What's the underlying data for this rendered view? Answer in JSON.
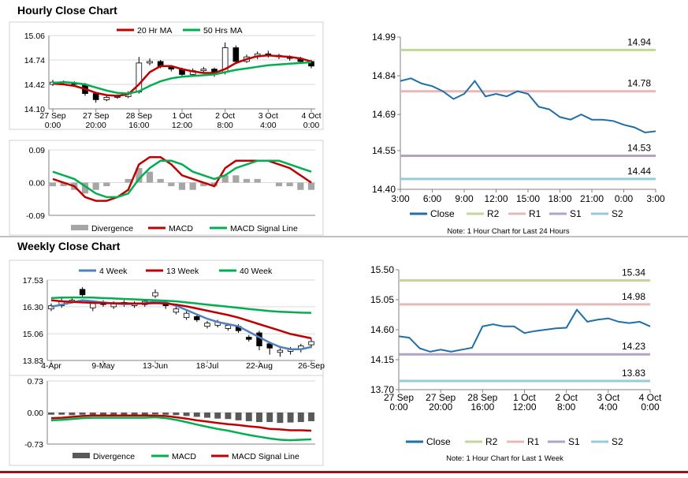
{
  "headings": [
    "Hourly Close Chart",
    "Weekly Close Chart"
  ],
  "chart_data": [
    {
      "type": "candlestick",
      "categories": [
        "27 Sep\n0:00",
        null,
        null,
        null,
        "27 Sep\n20:00",
        null,
        null,
        null,
        "28 Sep\n16:00",
        null,
        null,
        null,
        "1 Oct\n12:00",
        null,
        null,
        null,
        "2 Oct\n8:00",
        null,
        null,
        null,
        "3 Oct\n4:00",
        null,
        null,
        null,
        "4 Oct\n0:00"
      ],
      "ohlc": {
        "open": [
          14.42,
          14.45,
          14.44,
          14.42,
          14.3,
          14.22,
          14.25,
          14.26,
          14.32,
          14.7,
          14.72,
          14.65,
          14.62,
          14.55,
          14.6,
          14.62,
          14.58,
          14.9,
          14.72,
          14.78,
          14.82,
          14.8,
          14.78,
          14.76,
          14.72
        ],
        "high": [
          14.48,
          14.47,
          14.46,
          14.44,
          14.32,
          14.28,
          14.29,
          14.33,
          14.78,
          14.76,
          14.74,
          14.67,
          14.64,
          14.63,
          14.65,
          14.64,
          14.97,
          14.93,
          14.81,
          14.85,
          14.86,
          14.82,
          14.8,
          14.78,
          14.74
        ],
        "low": [
          14.4,
          14.42,
          14.4,
          14.27,
          14.18,
          14.2,
          14.23,
          14.24,
          14.3,
          14.67,
          14.63,
          14.59,
          14.52,
          14.52,
          14.57,
          14.52,
          14.55,
          14.7,
          14.7,
          14.75,
          14.77,
          14.75,
          14.73,
          14.7,
          14.63
        ],
        "close": [
          14.45,
          14.44,
          14.42,
          14.3,
          14.22,
          14.25,
          14.26,
          14.3,
          14.7,
          14.72,
          14.65,
          14.62,
          14.55,
          14.6,
          14.62,
          14.55,
          14.9,
          14.72,
          14.78,
          14.82,
          14.8,
          14.78,
          14.76,
          14.72,
          14.66
        ]
      },
      "series": [
        {
          "name": "20 Hr MA",
          "color": "#c00000",
          "values": [
            14.43,
            14.42,
            14.4,
            14.36,
            14.31,
            14.28,
            14.27,
            14.29,
            14.42,
            14.58,
            14.66,
            14.66,
            14.62,
            14.59,
            14.57,
            14.57,
            14.62,
            14.7,
            14.75,
            14.79,
            14.8,
            14.79,
            14.78,
            14.76,
            14.72
          ]
        },
        {
          "name": "50 Hrs MA",
          "color": "#00b050",
          "values": [
            14.44,
            14.45,
            14.44,
            14.42,
            14.38,
            14.34,
            14.31,
            14.3,
            14.33,
            14.4,
            14.46,
            14.5,
            14.52,
            14.53,
            14.54,
            14.55,
            14.58,
            14.61,
            14.63,
            14.65,
            14.67,
            14.68,
            14.69,
            14.7,
            14.71
          ]
        }
      ],
      "ylim": [
        14.1,
        15.06
      ],
      "yticks": [
        {
          "value": 14.1,
          "label": "14.10"
        },
        14.42,
        14.74,
        15.06
      ],
      "grid": true
    },
    {
      "type": "combo",
      "series": [
        {
          "name": "Divergence",
          "type": "bar",
          "color": "#a6a6a6",
          "values": [
            -0.01,
            -0.01,
            -0.02,
            -0.03,
            -0.02,
            -0.01,
            0,
            0.01,
            0.04,
            0.03,
            0.01,
            -0.01,
            -0.02,
            -0.02,
            -0.01,
            -0.01,
            0.02,
            0.02,
            0.01,
            0.01,
            0,
            -0.01,
            -0.01,
            -0.02,
            -0.02
          ]
        },
        {
          "name": "MACD",
          "type": "line",
          "color": "#c00000",
          "values": [
            0.01,
            0,
            -0.01,
            -0.04,
            -0.05,
            -0.05,
            -0.04,
            -0.02,
            0.05,
            0.07,
            0.07,
            0.05,
            0.02,
            0.01,
            0,
            -0.01,
            0.04,
            0.06,
            0.06,
            0.06,
            0.06,
            0.05,
            0.04,
            0.02,
            0
          ]
        },
        {
          "name": "MACD Signal Line",
          "type": "line",
          "color": "#00b050",
          "values": [
            0.03,
            0.02,
            0.01,
            -0.01,
            -0.03,
            -0.04,
            -0.04,
            -0.03,
            0.01,
            0.04,
            0.06,
            0.06,
            0.05,
            0.03,
            0.02,
            0.01,
            0.02,
            0.04,
            0.05,
            0.06,
            0.06,
            0.06,
            0.05,
            0.04,
            0.03
          ]
        }
      ],
      "ylim": [
        -0.09,
        0.09
      ],
      "yticks": [
        -0.09,
        {
          "value": 0,
          "label": "0.00"
        },
        0.09
      ],
      "grid": true
    },
    {
      "type": "line",
      "categories": [
        "3:00",
        null,
        null,
        "6:00",
        null,
        null,
        "9:00",
        null,
        null,
        "12:00",
        null,
        null,
        "15:00",
        null,
        null,
        "18:00",
        null,
        null,
        "21:00",
        null,
        null,
        "0:00",
        null,
        null,
        "3:00"
      ],
      "series": [
        {
          "name": "Close",
          "color": "#1f6fa8",
          "values": [
            14.82,
            14.83,
            14.81,
            14.8,
            14.78,
            14.75,
            14.77,
            14.82,
            14.76,
            14.77,
            14.76,
            14.78,
            14.77,
            14.72,
            14.71,
            14.68,
            14.67,
            14.69,
            14.67,
            14.67,
            14.665,
            14.65,
            14.64,
            14.62,
            14.625
          ]
        }
      ],
      "reference_lines": [
        {
          "name": "R2",
          "value": 14.94,
          "color": "#c3d69b"
        },
        {
          "name": "R1",
          "value": 14.78,
          "color": "#e6b9b8"
        },
        {
          "name": "S1",
          "value": 14.53,
          "color": "#b3a2c7"
        },
        {
          "name": "S2",
          "value": 14.44,
          "color": "#93cddd"
        }
      ],
      "ylim": [
        14.4,
        14.99
      ],
      "yticks": [
        {
          "value": 14.4,
          "label": "14.40"
        },
        14.55,
        14.69,
        14.84,
        14.99
      ],
      "grid": false,
      "note": "Note: 1 Hour Chart for Last 24 Hours"
    },
    {
      "type": "candlestick",
      "categories": [
        "4-Apr",
        null,
        null,
        null,
        null,
        "9-May",
        null,
        null,
        null,
        null,
        "13-Jun",
        null,
        null,
        null,
        null,
        "18-Jul",
        null,
        null,
        null,
        null,
        "22-Aug",
        null,
        null,
        null,
        null,
        "26-Sep"
      ],
      "ohlc": {
        "open": [
          16.2,
          16.35,
          16.55,
          17.1,
          16.25,
          16.5,
          16.3,
          16.5,
          16.35,
          16.4,
          16.8,
          16.5,
          16.05,
          15.8,
          15.85,
          15.4,
          15.45,
          15.3,
          15.4,
          14.9,
          15.1,
          14.6,
          14.2,
          14.25,
          14.35,
          14.55
        ],
        "high": [
          16.45,
          16.7,
          16.75,
          17.2,
          16.6,
          16.6,
          16.55,
          16.6,
          16.55,
          16.65,
          17.1,
          16.6,
          16.3,
          16.1,
          15.95,
          15.65,
          15.7,
          15.55,
          15.5,
          15.0,
          15.2,
          14.7,
          14.4,
          14.45,
          14.6,
          14.85
        ],
        "low": [
          16.1,
          16.25,
          16.45,
          16.7,
          16.1,
          16.3,
          16.2,
          16.3,
          16.25,
          16.3,
          16.7,
          16.2,
          15.95,
          15.7,
          15.6,
          15.3,
          15.35,
          15.2,
          15.1,
          14.7,
          14.3,
          14.1,
          14.0,
          14.1,
          14.2,
          14.4
        ],
        "close": [
          16.35,
          16.55,
          16.6,
          16.85,
          16.45,
          16.4,
          16.45,
          16.4,
          16.45,
          16.55,
          16.95,
          16.35,
          16.2,
          16.0,
          15.7,
          15.55,
          15.6,
          15.45,
          15.2,
          14.8,
          14.5,
          14.4,
          14.3,
          14.35,
          14.5,
          14.7
        ]
      },
      "series": [
        {
          "name": "4 Week",
          "color": "#4f81bd",
          "values": [
            16.3,
            16.4,
            16.5,
            16.6,
            16.55,
            16.5,
            16.45,
            16.42,
            16.43,
            16.46,
            16.55,
            16.5,
            16.35,
            16.15,
            15.95,
            15.75,
            15.6,
            15.5,
            15.4,
            15.15,
            14.9,
            14.65,
            14.45,
            14.35,
            14.35,
            14.45
          ]
        },
        {
          "name": "13 Week",
          "color": "#c00000",
          "values": [
            16.6,
            16.55,
            16.52,
            16.5,
            16.48,
            16.47,
            16.46,
            16.46,
            16.45,
            16.45,
            16.47,
            16.45,
            16.4,
            16.32,
            16.22,
            16.12,
            16.02,
            15.92,
            15.8,
            15.65,
            15.5,
            15.35,
            15.2,
            15.05,
            14.95,
            14.85
          ]
        },
        {
          "name": "40 Week",
          "color": "#00b050",
          "values": [
            16.7,
            16.72,
            16.73,
            16.73,
            16.72,
            16.7,
            16.68,
            16.66,
            16.64,
            16.62,
            16.6,
            16.58,
            16.55,
            16.5,
            16.45,
            16.4,
            16.35,
            16.3,
            16.25,
            16.2,
            16.15,
            16.1,
            16.07,
            16.05,
            16.03,
            16.02
          ]
        }
      ],
      "ylim": [
        13.83,
        17.53
      ],
      "yticks": [
        13.83,
        15.06,
        {
          "value": 16.3,
          "label": "16.30"
        },
        17.53
      ],
      "grid": true
    },
    {
      "type": "combo",
      "series": [
        {
          "name": "Divergence",
          "type": "bar",
          "color": "#595959",
          "values": [
            -0.05,
            -0.05,
            -0.06,
            -0.05,
            -0.05,
            -0.05,
            -0.05,
            -0.05,
            -0.05,
            -0.05,
            -0.04,
            -0.05,
            -0.06,
            -0.08,
            -0.1,
            -0.12,
            -0.14,
            -0.15,
            -0.18,
            -0.2,
            -0.22,
            -0.22,
            -0.24,
            -0.23,
            -0.22,
            -0.2
          ]
        },
        {
          "name": "MACD",
          "type": "line",
          "color": "#00b050",
          "values": [
            -0.18,
            -0.17,
            -0.15,
            -0.13,
            -0.12,
            -0.12,
            -0.12,
            -0.12,
            -0.12,
            -0.12,
            -0.11,
            -0.13,
            -0.17,
            -0.22,
            -0.28,
            -0.33,
            -0.38,
            -0.42,
            -0.47,
            -0.52,
            -0.56,
            -0.6,
            -0.63,
            -0.64,
            -0.63,
            -0.62
          ]
        },
        {
          "name": "MACD Signal Line",
          "type": "line",
          "color": "#c00000",
          "values": [
            -0.13,
            -0.12,
            -0.1,
            -0.08,
            -0.07,
            -0.07,
            -0.07,
            -0.07,
            -0.07,
            -0.07,
            -0.07,
            -0.08,
            -0.11,
            -0.14,
            -0.18,
            -0.21,
            -0.24,
            -0.27,
            -0.29,
            -0.32,
            -0.34,
            -0.38,
            -0.39,
            -0.41,
            -0.41,
            -0.42
          ]
        }
      ],
      "ylim": [
        -0.73,
        0.73
      ],
      "yticks": [
        -0.73,
        {
          "value": 0,
          "label": "0.00"
        },
        0.73
      ],
      "grid": true
    },
    {
      "type": "line",
      "categories": [
        "27 Sep\n0:00",
        null,
        null,
        null,
        "27 Sep\n20:00",
        null,
        null,
        null,
        "28 Sep\n16:00",
        null,
        null,
        null,
        "1 Oct\n12:00",
        null,
        null,
        null,
        "2 Oct\n8:00",
        null,
        null,
        null,
        "3 Oct\n4:00",
        null,
        null,
        null,
        "4 Oct\n0:00"
      ],
      "series": [
        {
          "name": "Close",
          "color": "#1f6fa8",
          "values": [
            14.5,
            14.48,
            14.32,
            14.27,
            14.3,
            14.27,
            14.3,
            14.33,
            14.65,
            14.68,
            14.65,
            14.65,
            14.55,
            14.58,
            14.6,
            14.62,
            14.63,
            14.9,
            14.72,
            14.75,
            14.77,
            14.72,
            14.7,
            14.72,
            14.65
          ]
        }
      ],
      "reference_lines": [
        {
          "name": "R2",
          "value": 15.34,
          "color": "#c3d69b"
        },
        {
          "name": "R1",
          "value": 14.98,
          "color": "#e6b9b8"
        },
        {
          "name": "S1",
          "value": 14.23,
          "color": "#b3a2c7"
        },
        {
          "name": "S2",
          "value": 13.83,
          "color": "#93cddd"
        }
      ],
      "ylim": [
        13.7,
        15.5
      ],
      "yticks": [
        {
          "value": 13.7,
          "label": "13.70"
        },
        14.15,
        {
          "value": 14.6,
          "label": "14.60"
        },
        15.05,
        {
          "value": 15.5,
          "label": "15.50"
        }
      ],
      "grid": false,
      "note": "Note: 1 Hour Chart for Last 1 Week"
    }
  ]
}
